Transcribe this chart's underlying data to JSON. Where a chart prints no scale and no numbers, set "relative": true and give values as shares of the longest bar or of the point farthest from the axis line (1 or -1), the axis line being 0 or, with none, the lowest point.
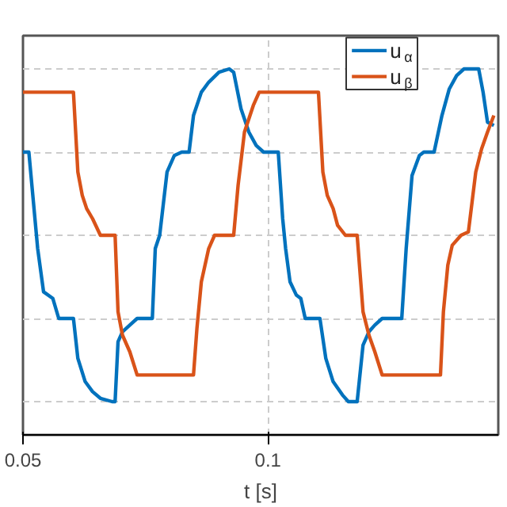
{
  "chart_data": {
    "type": "line",
    "xlabel": "t [s]",
    "relative": true,
    "xlim": [
      0.05,
      0.147
    ],
    "xticks": [
      0.05,
      0.1
    ],
    "grid": true,
    "legend": "top right",
    "series": [
      {
        "name": "u$_{α}$",
        "color": "#0072bd",
        "x": [
          0.05,
          0.0512,
          0.053,
          0.0542,
          0.0561,
          0.0573,
          0.0603,
          0.0612,
          0.0627,
          0.0642,
          0.0658,
          0.0682,
          0.0688,
          0.0694,
          0.0703,
          0.0718,
          0.0733,
          0.0764,
          0.077,
          0.0779,
          0.0794,
          0.0809,
          0.0824,
          0.0839,
          0.0848,
          0.0864,
          0.0879,
          0.09,
          0.0921,
          0.093,
          0.0945,
          0.0961,
          0.0976,
          0.0991,
          0.1021,
          0.103,
          0.1036,
          0.1045,
          0.1058,
          0.1067,
          0.1076,
          0.1106,
          0.1118,
          0.1133,
          0.1152,
          0.1164,
          0.1182,
          0.1194,
          0.1206,
          0.1218,
          0.1233,
          0.1273,
          0.1282,
          0.1294,
          0.1309,
          0.1318,
          0.1339,
          0.1355,
          0.137,
          0.1385,
          0.14,
          0.143,
          0.1439,
          0.1448,
          0.1461
        ],
        "values": [
          0.75,
          0.75,
          0.46,
          0.33,
          0.31,
          0.25,
          0.25,
          0.13,
          0.06,
          0.03,
          0.01,
          0.0,
          0.0,
          0.18,
          0.21,
          0.23,
          0.25,
          0.25,
          0.46,
          0.5,
          0.69,
          0.74,
          0.75,
          0.75,
          0.86,
          0.93,
          0.96,
          0.99,
          1.0,
          0.99,
          0.88,
          0.81,
          0.77,
          0.75,
          0.75,
          0.55,
          0.46,
          0.36,
          0.32,
          0.31,
          0.25,
          0.25,
          0.13,
          0.06,
          0.02,
          0.0,
          0.0,
          0.17,
          0.21,
          0.23,
          0.25,
          0.25,
          0.46,
          0.68,
          0.74,
          0.75,
          0.75,
          0.86,
          0.94,
          0.98,
          1.0,
          1.0,
          0.93,
          0.84,
          0.83
        ]
      },
      {
        "name": "u$_{β}$",
        "color": "#d95319",
        "x": [
          0.05,
          0.0603,
          0.0612,
          0.0621,
          0.063,
          0.0642,
          0.0658,
          0.0688,
          0.0694,
          0.0703,
          0.0718,
          0.0733,
          0.0848,
          0.0855,
          0.0864,
          0.0879,
          0.0891,
          0.093,
          0.0939,
          0.0952,
          0.097,
          0.0982,
          0.1103,
          0.1112,
          0.1121,
          0.1133,
          0.1142,
          0.1158,
          0.1182,
          0.1194,
          0.1206,
          0.1218,
          0.1233,
          0.1352,
          0.1358,
          0.1367,
          0.1376,
          0.1394,
          0.1409,
          0.1424,
          0.1436,
          0.1448,
          0.1461
        ],
        "values": [
          0.93,
          0.93,
          0.69,
          0.62,
          0.58,
          0.55,
          0.5,
          0.5,
          0.27,
          0.2,
          0.15,
          0.08,
          0.08,
          0.22,
          0.36,
          0.46,
          0.5,
          0.5,
          0.65,
          0.81,
          0.89,
          0.93,
          0.93,
          0.69,
          0.62,
          0.58,
          0.53,
          0.5,
          0.5,
          0.27,
          0.2,
          0.15,
          0.08,
          0.08,
          0.27,
          0.41,
          0.47,
          0.5,
          0.51,
          0.69,
          0.76,
          0.81,
          0.86
        ]
      }
    ]
  }
}
